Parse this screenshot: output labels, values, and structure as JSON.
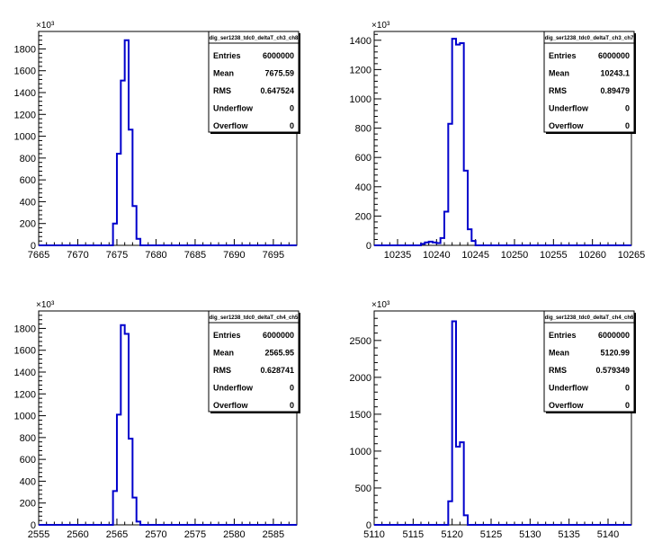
{
  "chart_data": [
    {
      "type": "histogram",
      "title": "",
      "stats_title": "dig_ser1238_tdc0_deltaT_ch3_ch8",
      "exponent_label": "×10³",
      "xlim": [
        7665,
        7698
      ],
      "ylim": [
        0,
        1960
      ],
      "xticks": [
        "7665",
        "7670",
        "7675",
        "7680",
        "7685",
        "7690",
        "7695"
      ],
      "yticks": [
        "0",
        "200",
        "400",
        "600",
        "800",
        "1000",
        "1200",
        "1400",
        "1600",
        "1800"
      ],
      "bin_width": 0.5,
      "bins": [
        {
          "x0": 7674.0,
          "v": 0
        },
        {
          "x0": 7674.5,
          "v": 200
        },
        {
          "x0": 7675.0,
          "v": 840
        },
        {
          "x0": 7675.5,
          "v": 1510
        },
        {
          "x0": 7676.0,
          "v": 1880
        },
        {
          "x0": 7676.5,
          "v": 1060
        },
        {
          "x0": 7677.0,
          "v": 360
        },
        {
          "x0": 7677.5,
          "v": 60
        },
        {
          "x0": 7678.0,
          "v": 0
        }
      ],
      "stats": [
        {
          "label": "Entries",
          "value": "6000000"
        },
        {
          "label": "Mean",
          "value": "7675.59"
        },
        {
          "label": "RMS",
          "value": "0.647524"
        },
        {
          "label": "Underflow",
          "value": "0"
        },
        {
          "label": "Overflow",
          "value": "0"
        }
      ]
    },
    {
      "type": "histogram",
      "title": "",
      "stats_title": "dig_ser1238_tdc0_deltaT_ch3_ch7",
      "exponent_label": "×10³",
      "xlim": [
        10232,
        10265
      ],
      "ylim": [
        0,
        1460
      ],
      "xticks": [
        "10235",
        "10240",
        "10245",
        "10250",
        "10255",
        "10260",
        "10265"
      ],
      "yticks": [
        "0",
        "200",
        "400",
        "600",
        "800",
        "1000",
        "1200",
        "1400"
      ],
      "bin_width": 0.5,
      "bins": [
        {
          "x0": 10238.0,
          "v": 10
        },
        {
          "x0": 10238.5,
          "v": 20
        },
        {
          "x0": 10239.0,
          "v": 25
        },
        {
          "x0": 10239.5,
          "v": 20
        },
        {
          "x0": 10240.0,
          "v": 15
        },
        {
          "x0": 10240.5,
          "v": 50
        },
        {
          "x0": 10241.0,
          "v": 230
        },
        {
          "x0": 10241.5,
          "v": 830
        },
        {
          "x0": 10242.0,
          "v": 1410
        },
        {
          "x0": 10242.5,
          "v": 1370
        },
        {
          "x0": 10243.0,
          "v": 1380
        },
        {
          "x0": 10243.5,
          "v": 510
        },
        {
          "x0": 10244.0,
          "v": 110
        },
        {
          "x0": 10244.5,
          "v": 30
        },
        {
          "x0": 10245.0,
          "v": 0
        }
      ],
      "stats": [
        {
          "label": "Entries",
          "value": "6000000"
        },
        {
          "label": "Mean",
          "value": "10243.1"
        },
        {
          "label": "RMS",
          "value": "0.89479"
        },
        {
          "label": "Underflow",
          "value": "0"
        },
        {
          "label": "Overflow",
          "value": "0"
        }
      ]
    },
    {
      "type": "histogram",
      "title": "",
      "stats_title": "dig_ser1238_tdc0_deltaT_ch4_ch5",
      "exponent_label": "×10³",
      "xlim": [
        2555,
        2588
      ],
      "ylim": [
        0,
        1960
      ],
      "xticks": [
        "2555",
        "2560",
        "2565",
        "2570",
        "2575",
        "2580",
        "2585"
      ],
      "yticks": [
        "0",
        "200",
        "400",
        "600",
        "800",
        "1000",
        "1200",
        "1400",
        "1600",
        "1800"
      ],
      "bin_width": 0.5,
      "bins": [
        {
          "x0": 2564.0,
          "v": 0
        },
        {
          "x0": 2564.5,
          "v": 310
        },
        {
          "x0": 2565.0,
          "v": 1010
        },
        {
          "x0": 2565.5,
          "v": 1830
        },
        {
          "x0": 2566.0,
          "v": 1750
        },
        {
          "x0": 2566.5,
          "v": 790
        },
        {
          "x0": 2567.0,
          "v": 250
        },
        {
          "x0": 2567.5,
          "v": 30
        },
        {
          "x0": 2568.0,
          "v": 0
        }
      ],
      "stats": [
        {
          "label": "Entries",
          "value": "6000000"
        },
        {
          "label": "Mean",
          "value": "2565.95"
        },
        {
          "label": "RMS",
          "value": "0.628741"
        },
        {
          "label": "Underflow",
          "value": "0"
        },
        {
          "label": "Overflow",
          "value": "0"
        }
      ]
    },
    {
      "type": "histogram",
      "title": "",
      "stats_title": "dig_ser1238_tdc0_deltaT_ch4_ch6",
      "exponent_label": "×10³",
      "xlim": [
        5110,
        5143
      ],
      "ylim": [
        0,
        2900
      ],
      "xticks": [
        "5110",
        "5115",
        "5120",
        "5125",
        "5130",
        "5135",
        "5140"
      ],
      "yticks": [
        "0",
        "500",
        "1000",
        "1500",
        "2000",
        "2500"
      ],
      "bin_width": 0.5,
      "bins": [
        {
          "x0": 5119.0,
          "v": 0
        },
        {
          "x0": 5119.5,
          "v": 320
        },
        {
          "x0": 5120.0,
          "v": 2760
        },
        {
          "x0": 5120.5,
          "v": 1060
        },
        {
          "x0": 5121.0,
          "v": 1120
        },
        {
          "x0": 5121.5,
          "v": 130
        },
        {
          "x0": 5122.0,
          "v": 0
        }
      ],
      "stats": [
        {
          "label": "Entries",
          "value": "6000000"
        },
        {
          "label": "Mean",
          "value": "5120.99"
        },
        {
          "label": "RMS",
          "value": "0.579349"
        },
        {
          "label": "Underflow",
          "value": "0"
        },
        {
          "label": "Overflow",
          "value": "0"
        }
      ]
    }
  ]
}
